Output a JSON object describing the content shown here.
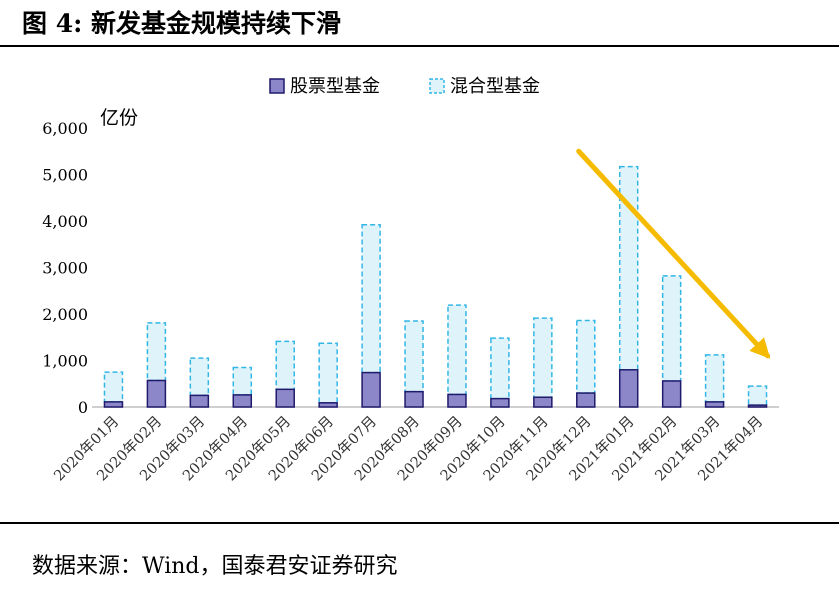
{
  "figure": {
    "title": "图 4:  新发基金规模持续下滑",
    "source": "数据来源：Wind，国泰君安证券研究"
  },
  "colors": {
    "stock": "#8b87c8",
    "stock_edge": "#1f1a6b",
    "mixed": "#dff4fa",
    "mixed_edge": "#33b6e6",
    "arrow": "#f5bb00",
    "axis": "#bfbfbf"
  },
  "chart_data": {
    "type": "bar",
    "stacked": true,
    "title": "",
    "xlabel": "",
    "ylabel": "亿份",
    "ylim": [
      0,
      6000
    ],
    "yticks": [
      "0",
      "1,000",
      "2,000",
      "3,000",
      "4,000",
      "5,000",
      "6,000"
    ],
    "ytick_values": [
      0,
      1000,
      2000,
      3000,
      4000,
      5000,
      6000
    ],
    "legend_position": "top-center",
    "grid": false,
    "categories": [
      "2020年01月",
      "2020年02月",
      "2020年03月",
      "2020年04月",
      "2020年05月",
      "2020年06月",
      "2020年07月",
      "2020年08月",
      "2020年09月",
      "2020年10月",
      "2020年11月",
      "2020年12月",
      "2021年01月",
      "2021年02月",
      "2021年03月",
      "2021年04月"
    ],
    "series": [
      {
        "name": "股票型基金",
        "values": [
          110,
          570,
          250,
          260,
          380,
          90,
          740,
          330,
          270,
          180,
          210,
          300,
          800,
          560,
          110,
          40
        ]
      },
      {
        "name": "混合型基金",
        "values": [
          640,
          1240,
          800,
          590,
          1030,
          1280,
          3180,
          1520,
          1920,
          1300,
          1700,
          1560,
          4370,
          2260,
          1010,
          410
        ]
      }
    ],
    "annotations": [
      {
        "type": "trend-arrow",
        "direction": "down",
        "from": {
          "x": "2021年01月",
          "y": 5500
        },
        "to": {
          "x": "2021年04月",
          "y": 1100
        }
      }
    ]
  }
}
